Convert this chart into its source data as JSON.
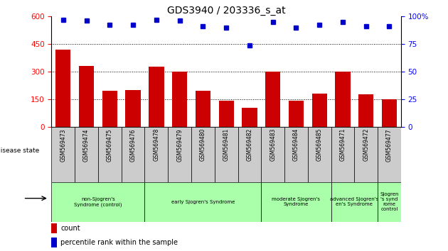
{
  "title": "GDS3940 / 203336_s_at",
  "samples": [
    "GSM569473",
    "GSM569474",
    "GSM569475",
    "GSM569476",
    "GSM569478",
    "GSM569479",
    "GSM569480",
    "GSM569481",
    "GSM569482",
    "GSM569483",
    "GSM569484",
    "GSM569485",
    "GSM569471",
    "GSM569472",
    "GSM569477"
  ],
  "counts": [
    420,
    330,
    195,
    200,
    325,
    300,
    195,
    140,
    105,
    300,
    140,
    180,
    300,
    175,
    148
  ],
  "percentile_ranks": [
    97,
    96,
    92,
    92,
    97,
    96,
    91,
    90,
    74,
    95,
    90,
    92,
    95,
    91,
    91
  ],
  "ylim_left": [
    0,
    600
  ],
  "ylim_right": [
    0,
    100
  ],
  "yticks_left": [
    0,
    150,
    300,
    450,
    600
  ],
  "yticks_right": [
    0,
    25,
    50,
    75,
    100
  ],
  "bar_color": "#cc0000",
  "dot_color": "#0000cc",
  "group_spans": [
    {
      "start": 0,
      "end": 3,
      "label": "non-Sjogren's\nSyndrome (control)"
    },
    {
      "start": 4,
      "end": 8,
      "label": "early Sjogren's Syndrome"
    },
    {
      "start": 9,
      "end": 11,
      "label": "moderate Sjogren's\nSyndrome"
    },
    {
      "start": 12,
      "end": 13,
      "label": "advanced Sjogren's\nen's Syndrome"
    },
    {
      "start": 14,
      "end": 14,
      "label": "Sjogren\n's synd\nrome\ncontrol"
    }
  ],
  "group_color": "#aaffaa",
  "tick_row_bg": "#cccccc",
  "disease_state_label": "disease state",
  "legend_count_label": "count",
  "legend_pct_label": "percentile rank within the sample",
  "right_axis_labels": [
    "0",
    "25",
    "50",
    "75",
    "100%"
  ]
}
